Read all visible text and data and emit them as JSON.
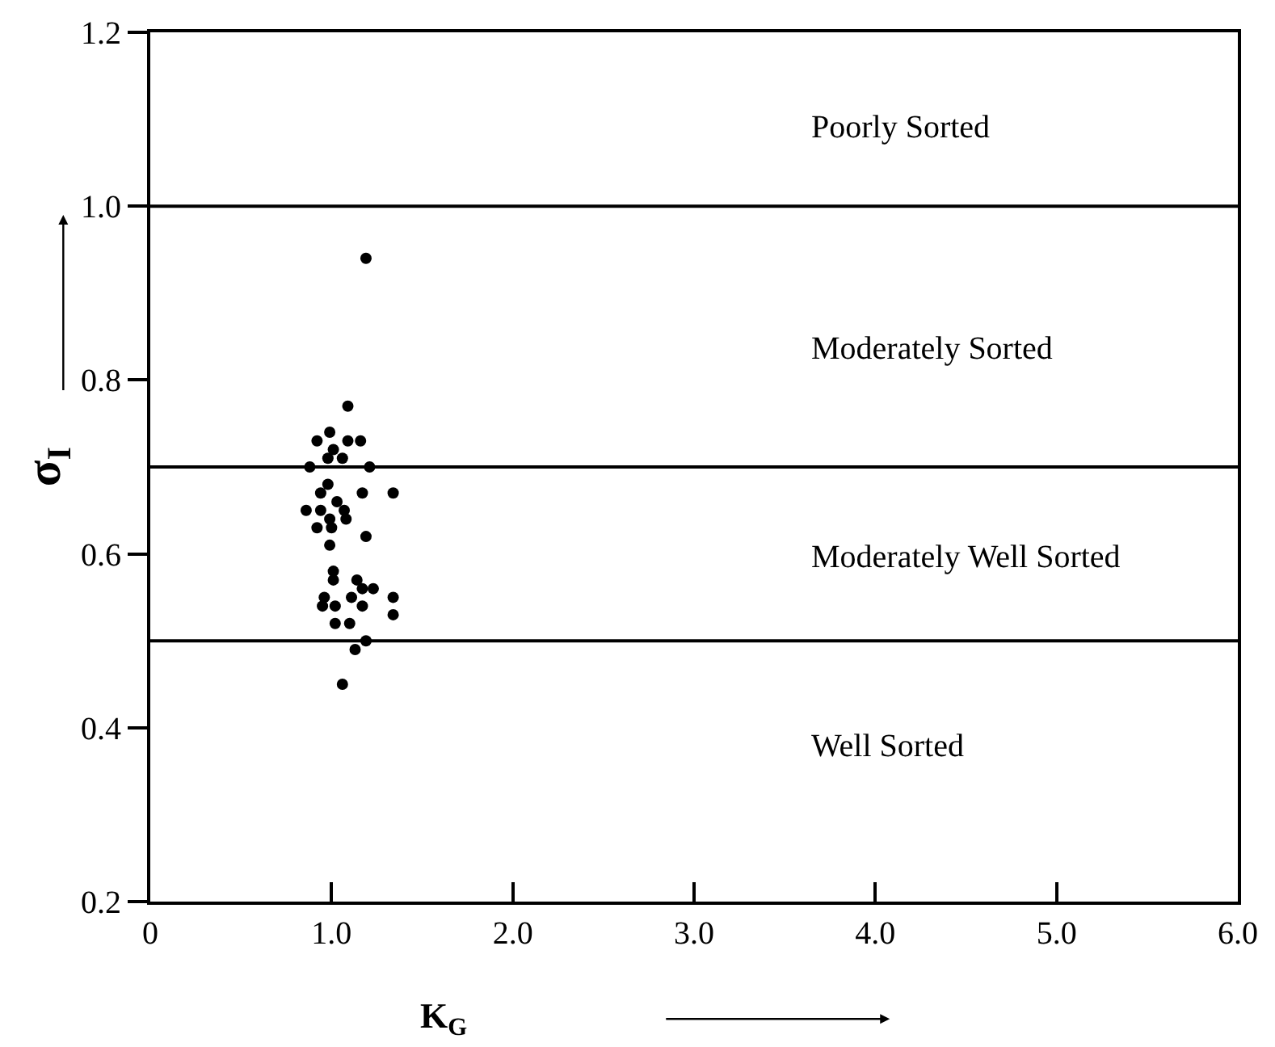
{
  "chart_data": {
    "type": "scatter",
    "xlabel": "K$_{G}$",
    "ylabel": "σ$_{I}$",
    "marker": "circle",
    "xlim": [
      0,
      6
    ],
    "ylim": [
      0.2,
      1.2
    ],
    "xticks": [
      0,
      {
        "value": 1,
        "label": "1.0"
      },
      {
        "value": 2,
        "label": "2.0"
      },
      {
        "value": 3,
        "label": "3.0"
      },
      {
        "value": 4,
        "label": "4.0"
      },
      {
        "value": 5,
        "label": "5.0"
      },
      {
        "value": 6,
        "label": "6.0"
      }
    ],
    "yticks": [
      0.2,
      0.4,
      0.6,
      0.8,
      {
        "value": 1,
        "label": "1.0"
      },
      1.2
    ],
    "series": [
      {
        "color": "#000000",
        "x": [
          1.19,
          1.09,
          0.99,
          0.92,
          1.16,
          1.09,
          1.01,
          1.06,
          0.98,
          0.88,
          1.21,
          0.98,
          0.94,
          1.17,
          1.34,
          1.03,
          0.94,
          0.86,
          1.07,
          0.99,
          0.92,
          1.08,
          1.0,
          1.19,
          0.99,
          1.01,
          1.14,
          1.01,
          1.23,
          1.17,
          0.96,
          1.34,
          1.11,
          1.02,
          1.17,
          0.95,
          1.34,
          1.02,
          1.1,
          1.19,
          1.13,
          1.06
        ],
        "values": [
          0.94,
          0.77,
          0.74,
          0.73,
          0.73,
          0.73,
          0.72,
          0.71,
          0.71,
          0.7,
          0.7,
          0.68,
          0.67,
          0.67,
          0.67,
          0.66,
          0.65,
          0.65,
          0.65,
          0.64,
          0.63,
          0.64,
          0.63,
          0.62,
          0.61,
          0.58,
          0.57,
          0.57,
          0.56,
          0.56,
          0.55,
          0.55,
          0.55,
          0.54,
          0.54,
          0.54,
          0.53,
          0.52,
          0.52,
          0.5,
          0.49,
          0.45
        ]
      }
    ],
    "ref_lines": [
      {
        "axis": "y",
        "value": 1.0,
        "color": "#000000"
      },
      {
        "axis": "y",
        "value": 0.7,
        "color": "#000000"
      },
      {
        "axis": "y",
        "value": 0.5,
        "color": "#000000"
      }
    ],
    "annotations": [
      "Poorly Sorted",
      "Moderately Sorted",
      "Moderately Well Sorted",
      "Well Sorted"
    ]
  }
}
